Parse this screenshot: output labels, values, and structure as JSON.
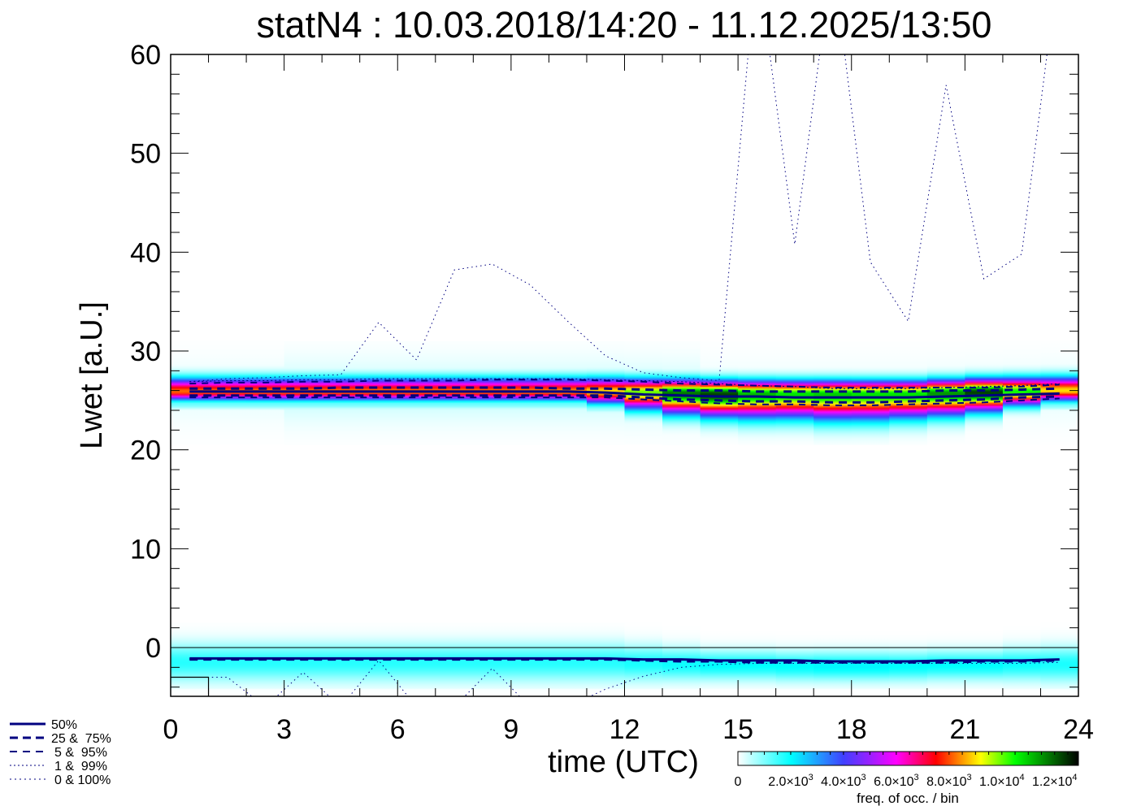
{
  "chart_data": {
    "type": "heatmap",
    "title": "statN4 : 10.03.2018/14:20 - 11.12.2025/13:50",
    "xlabel": "time (UTC)",
    "ylabel": "Lwet [a.U.]",
    "xlim": [
      0,
      24
    ],
    "ylim": [
      -5,
      60
    ],
    "xticks": [
      "0",
      "3",
      "6",
      "9",
      "12",
      "15",
      "18",
      "21",
      "24"
    ],
    "xtick_values": [
      0,
      3,
      6,
      9,
      12,
      15,
      18,
      21,
      24
    ],
    "yticks": [
      "0",
      "10",
      "20",
      "30",
      "40",
      "50",
      "60"
    ],
    "ytick_values": [
      0,
      10,
      20,
      30,
      40,
      50,
      60
    ],
    "hours": [
      0.5,
      1.5,
      2.5,
      3.5,
      4.5,
      5.5,
      6.5,
      7.5,
      8.5,
      9.5,
      10.5,
      11.5,
      12.5,
      13.5,
      14.5,
      15.5,
      16.5,
      17.5,
      18.5,
      19.5,
      20.5,
      21.5,
      22.5,
      23.5
    ],
    "legend": {
      "placement": "bottom-left",
      "entries": [
        "50%",
        "25 &  75%",
        "5 &  95%",
        "1 &  99%",
        "0 & 100%"
      ]
    },
    "colorbar": {
      "label": "freq. of occ. / bin",
      "range": [
        0,
        12900
      ],
      "ticks": [
        {
          "value": 0,
          "mant": "0",
          "exp": ""
        },
        {
          "value": 2000,
          "mant": "2.0×10",
          "exp": "3"
        },
        {
          "value": 4000,
          "mant": "4.0×10",
          "exp": "3"
        },
        {
          "value": 6000,
          "mant": "6.0×10",
          "exp": "3"
        },
        {
          "value": 8000,
          "mant": "8.0×10",
          "exp": "3"
        },
        {
          "value": 10000,
          "mant": "1.0×10",
          "exp": "4"
        },
        {
          "value": 12000,
          "mant": "1.2×10",
          "exp": "4"
        }
      ],
      "colors": [
        [
          0,
          "#ffffff"
        ],
        [
          2000,
          "#00ffff"
        ],
        [
          4000,
          "#4040ff"
        ],
        [
          5000,
          "#9a20ff"
        ],
        [
          6000,
          "#ff00ff"
        ],
        [
          7500,
          "#ff0000"
        ],
        [
          8500,
          "#ff9900"
        ],
        [
          9200,
          "#ffff00"
        ],
        [
          10500,
          "#00ff00"
        ],
        [
          12900,
          "#000000"
        ]
      ]
    },
    "line_color": "#000080",
    "upper_band": {
      "p50": [
        25.9,
        25.9,
        25.9,
        25.9,
        25.9,
        25.9,
        25.9,
        25.9,
        25.9,
        25.9,
        25.9,
        25.8,
        25.6,
        25.5,
        25.4,
        25.4,
        25.3,
        25.3,
        25.3,
        25.3,
        25.4,
        25.5,
        25.6,
        25.7
      ],
      "p25": [
        25.5,
        25.5,
        25.5,
        25.5,
        25.5,
        25.5,
        25.5,
        25.5,
        25.5,
        25.5,
        25.5,
        25.5,
        25.3,
        25.1,
        25.0,
        24.9,
        24.9,
        24.8,
        24.8,
        24.9,
        25.0,
        25.1,
        25.3,
        25.4
      ],
      "p75": [
        26.2,
        26.2,
        26.2,
        26.2,
        26.3,
        26.3,
        26.3,
        26.3,
        26.3,
        26.3,
        26.2,
        26.2,
        26.1,
        26.0,
        26.0,
        25.9,
        25.9,
        25.9,
        25.9,
        25.9,
        26.0,
        26.0,
        26.1,
        26.2
      ],
      "p5": [
        25.3,
        25.3,
        25.3,
        25.3,
        25.3,
        25.3,
        25.3,
        25.3,
        25.3,
        25.3,
        25.3,
        25.3,
        25.1,
        24.9,
        24.7,
        24.6,
        24.6,
        24.5,
        24.5,
        24.6,
        24.7,
        24.8,
        25.0,
        25.2
      ],
      "p95": [
        26.7,
        26.8,
        26.8,
        26.9,
        26.9,
        27.0,
        27.0,
        27.0,
        27.1,
        27.1,
        27.1,
        27.0,
        26.9,
        26.7,
        26.6,
        26.5,
        26.4,
        26.3,
        26.3,
        26.3,
        26.3,
        26.3,
        26.4,
        26.6
      ],
      "p99": [
        26.9,
        27.0,
        27.0,
        27.1,
        27.1,
        27.2,
        27.2,
        27.2,
        27.2,
        27.2,
        27.2,
        27.1,
        27.0,
        26.9,
        26.7,
        26.5,
        26.4,
        26.2,
        26.2,
        26.2,
        26.3,
        26.4,
        26.5,
        26.7
      ],
      "p100": [
        26.9,
        27.2,
        27.3,
        27.5,
        27.6,
        32.9,
        29.1,
        38.2,
        38.8,
        36.7,
        33.0,
        29.5,
        27.8,
        27.3,
        27.0,
        70.0,
        40.8,
        70.0,
        39.0,
        33.0,
        56.9,
        37.3,
        39.8,
        70.0
      ]
    },
    "lower_band": {
      "p50": [
        -1.1,
        -1.1,
        -1.1,
        -1.1,
        -1.1,
        -1.1,
        -1.1,
        -1.1,
        -1.1,
        -1.1,
        -1.1,
        -1.1,
        -1.2,
        -1.2,
        -1.3,
        -1.3,
        -1.3,
        -1.4,
        -1.4,
        -1.4,
        -1.3,
        -1.3,
        -1.3,
        -1.2
      ],
      "p25": [
        -1.2,
        -1.2,
        -1.2,
        -1.2,
        -1.2,
        -1.2,
        -1.2,
        -1.2,
        -1.2,
        -1.2,
        -1.2,
        -1.2,
        -1.3,
        -1.4,
        -1.4,
        -1.5,
        -1.5,
        -1.5,
        -1.5,
        -1.5,
        -1.5,
        -1.4,
        -1.4,
        -1.3
      ],
      "p0": [
        -3.0,
        -3.0,
        -6.0,
        -2.5,
        -6.0,
        -1.3,
        -6.0,
        -6.0,
        -2.1,
        -6.0,
        -6.0,
        -4.2,
        -2.9,
        -2.0,
        -1.7,
        -1.6,
        -1.6,
        -1.6,
        -1.6,
        -1.6,
        -1.6,
        -1.6,
        -1.6,
        -1.5
      ]
    },
    "density": {
      "upper_center": [
        25.9,
        25.9,
        25.9,
        25.9,
        25.9,
        25.9,
        25.9,
        25.9,
        25.9,
        25.9,
        25.9,
        25.9,
        25.8,
        25.7,
        25.6,
        25.6,
        25.6,
        25.6,
        25.6,
        25.6,
        25.7,
        25.8,
        25.9,
        26.0
      ],
      "upper_peak": [
        8200,
        8200,
        8300,
        8300,
        8300,
        8300,
        8300,
        8300,
        8300,
        8400,
        8500,
        9000,
        10000,
        11800,
        12300,
        11200,
        10800,
        11000,
        10800,
        10800,
        11500,
        12300,
        10500,
        9000
      ],
      "upper_spread_above": [
        0.9,
        0.9,
        0.9,
        0.9,
        0.9,
        0.9,
        0.9,
        0.9,
        0.9,
        0.9,
        0.9,
        0.9,
        0.9,
        0.9,
        0.9,
        0.9,
        0.9,
        0.9,
        0.9,
        0.9,
        0.9,
        0.9,
        0.9,
        0.9
      ],
      "upper_spread_below": [
        0.6,
        0.6,
        0.6,
        0.6,
        0.6,
        0.6,
        0.6,
        0.6,
        0.6,
        0.6,
        0.6,
        0.8,
        1.1,
        1.3,
        1.4,
        1.5,
        1.5,
        1.6,
        1.6,
        1.5,
        1.4,
        1.2,
        0.9,
        0.7
      ],
      "lower_center": [
        -1.5,
        -1.5,
        -1.5,
        -1.5,
        -1.5,
        -1.5,
        -1.5,
        -1.5,
        -1.5,
        -1.5,
        -1.5,
        -1.5,
        -1.6,
        -1.7,
        -1.8,
        -1.8,
        -1.9,
        -1.9,
        -1.9,
        -1.9,
        -1.8,
        -1.8,
        -1.7,
        -1.7
      ],
      "lower_peak": [
        1700,
        1700,
        1700,
        1700,
        1700,
        1700,
        1700,
        1700,
        1700,
        1700,
        1700,
        1700,
        1800,
        1900,
        2000,
        2000,
        2000,
        2100,
        2100,
        2000,
        2000,
        2000,
        1900,
        1800
      ],
      "lower_spread": [
        1.3,
        1.3,
        1.3,
        1.3,
        1.3,
        1.3,
        1.3,
        1.3,
        1.3,
        1.3,
        1.3,
        1.3,
        1.2,
        1.1,
        1.0,
        1.0,
        1.0,
        1.0,
        1.0,
        1.0,
        1.0,
        1.0,
        1.1,
        1.2
      ]
    }
  }
}
